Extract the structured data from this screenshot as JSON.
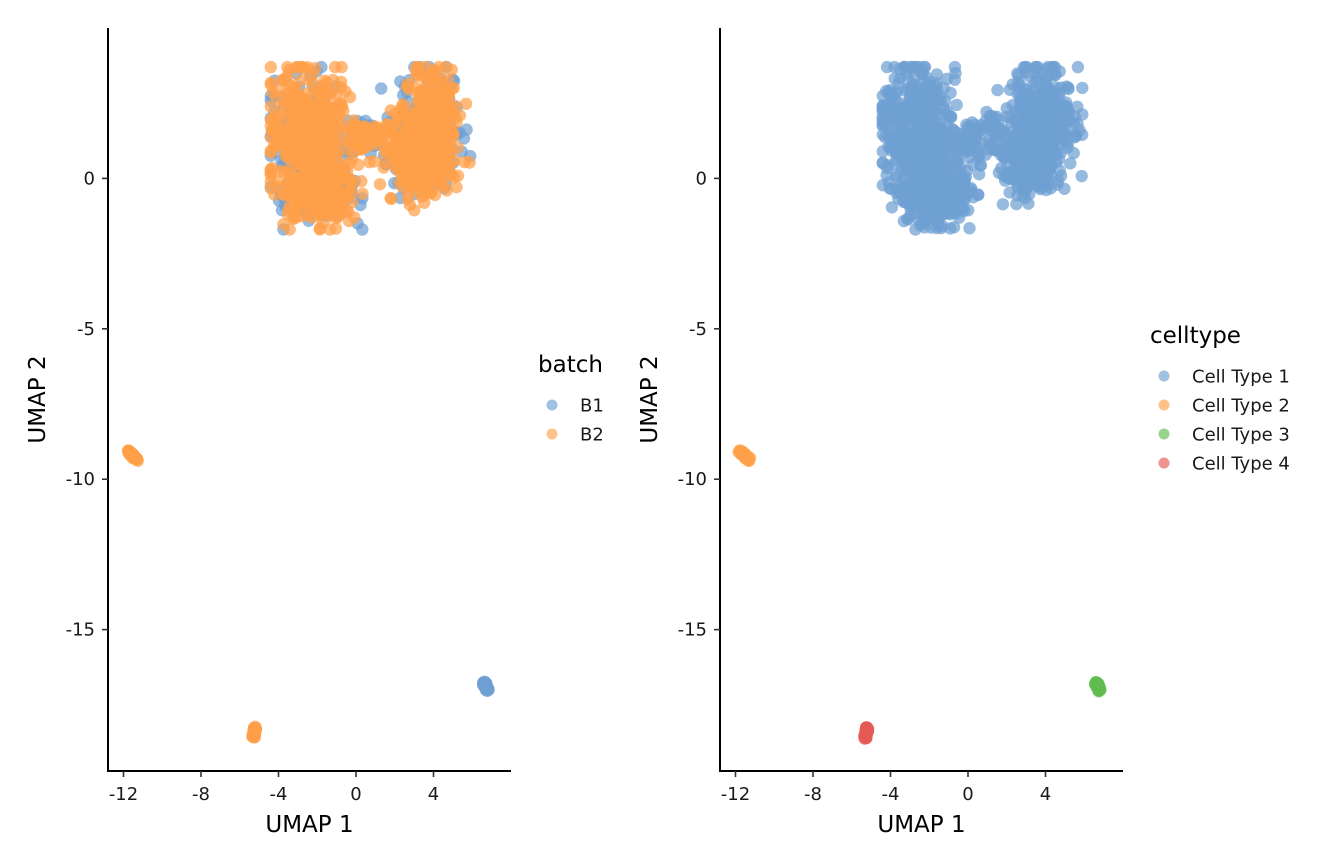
{
  "chart_data": [
    {
      "type": "scatter",
      "xlabel": "UMAP 1",
      "ylabel": "UMAP 2",
      "xlim": [
        -12.8,
        8.0
      ],
      "ylim": [
        -19.7,
        5.0
      ],
      "x_ticks": [
        -12,
        -8,
        -4,
        0,
        4
      ],
      "x_tick_labels": [
        "-12",
        "-8",
        "-4",
        "0",
        "4"
      ],
      "y_ticks": [
        0,
        -5,
        -10,
        -15
      ],
      "y_tick_labels": [
        "0",
        "-5",
        "-10",
        "-15"
      ],
      "grid": false,
      "legend": {
        "title": "batch",
        "placement": "right",
        "entries": [
          {
            "label": "B1",
            "color": "#6f9fd3"
          },
          {
            "label": "B2",
            "color": "#ffa04a"
          }
        ]
      },
      "clusters": [
        {
          "group": "B1",
          "role": "main",
          "approx_points": 500
        },
        {
          "group": "B2",
          "role": "main",
          "approx_points": 1100
        },
        {
          "group": "B2",
          "x": [
            -11.8,
            -11.3
          ],
          "y": [
            -9.05,
            -9.35
          ],
          "approx_points": 40
        },
        {
          "group": "B2",
          "x": [
            -5.3,
            -5.2
          ],
          "y": [
            -18.6,
            -18.25
          ],
          "approx_points": 40
        },
        {
          "group": "B1",
          "x": [
            6.6,
            6.8
          ],
          "y": [
            -16.75,
            -17.0
          ],
          "approx_points": 40
        }
      ]
    },
    {
      "type": "scatter",
      "xlabel": "UMAP 1",
      "ylabel": "UMAP 2",
      "xlim": [
        -12.8,
        8.0
      ],
      "ylim": [
        -19.7,
        5.0
      ],
      "x_ticks": [
        -12,
        -8,
        -4,
        0,
        4
      ],
      "x_tick_labels": [
        "-12",
        "-8",
        "-4",
        "0",
        "4"
      ],
      "y_ticks": [
        0,
        -5,
        -10,
        -15
      ],
      "y_tick_labels": [
        "0",
        "-5",
        "-10",
        "-15"
      ],
      "grid": false,
      "legend": {
        "title": "celltype",
        "placement": "right",
        "entries": [
          {
            "label": "Cell Type 1",
            "color": "#6f9fd3"
          },
          {
            "label": "Cell Type 2",
            "color": "#ffa04a"
          },
          {
            "label": "Cell Type 3",
            "color": "#62bb50"
          },
          {
            "label": "Cell Type 4",
            "color": "#e45a55"
          }
        ]
      },
      "clusters": [
        {
          "group": "Cell Type 1",
          "role": "main",
          "approx_points": 1400
        },
        {
          "group": "Cell Type 2",
          "x": [
            -11.8,
            -11.3
          ],
          "y": [
            -9.05,
            -9.35
          ],
          "approx_points": 40
        },
        {
          "group": "Cell Type 4",
          "x": [
            -5.3,
            -5.2
          ],
          "y": [
            -18.6,
            -18.25
          ],
          "approx_points": 40
        },
        {
          "group": "Cell Type 3",
          "x": [
            6.6,
            6.8
          ],
          "y": [
            -16.75,
            -17.0
          ],
          "approx_points": 40
        }
      ]
    }
  ]
}
